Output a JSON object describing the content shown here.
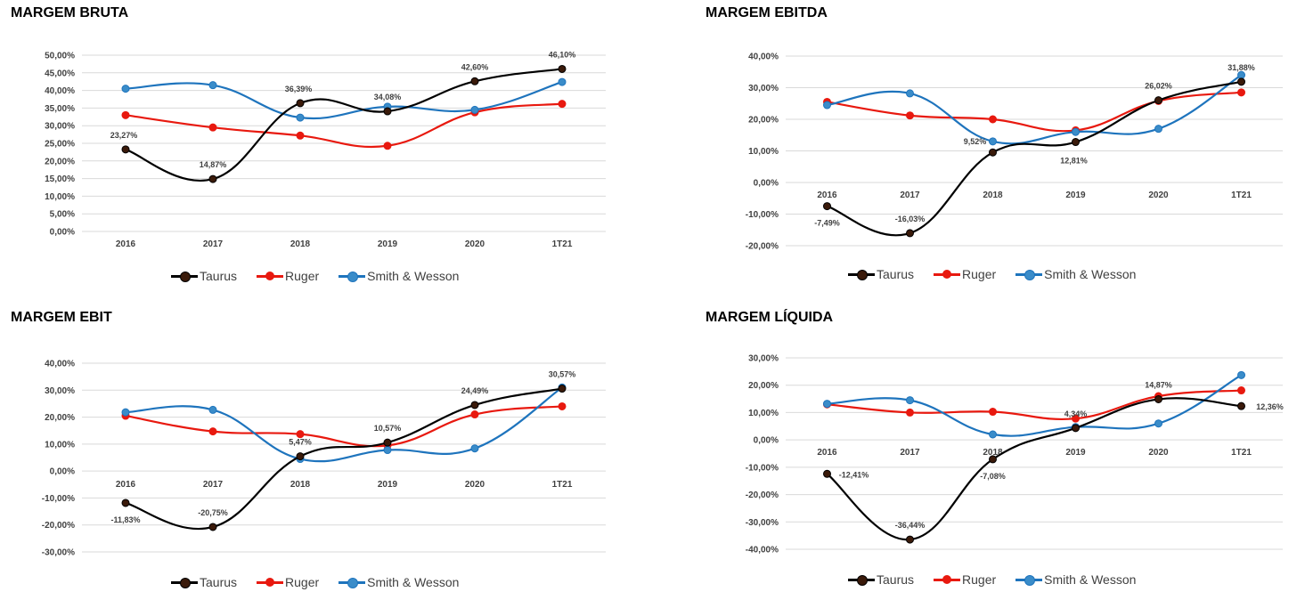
{
  "colors": {
    "Taurus": "#000000",
    "Ruger": "#e8190f",
    "Smith & Wesson": "#1e74bd",
    "marker_taurus": "#3a1a0a",
    "marker_smith": "#3a8cc9",
    "grid": "#d9d9d9"
  },
  "legend": [
    "Taurus",
    "Ruger",
    "Smith & Wesson"
  ],
  "chart_data": [
    {
      "type": "line",
      "title": "MARGEM BRUTA",
      "categories": [
        "2016",
        "2017",
        "2018",
        "2019",
        "2020",
        "1T21"
      ],
      "ylim": [
        0,
        50
      ],
      "yticks": [
        "0,00%",
        "5,00%",
        "10,00%",
        "15,00%",
        "20,00%",
        "25,00%",
        "30,00%",
        "35,00%",
        "40,00%",
        "45,00%",
        "50,00%"
      ],
      "series": [
        {
          "name": "Taurus",
          "values": [
            23.27,
            14.87,
            36.39,
            34.08,
            42.6,
            46.1
          ]
        },
        {
          "name": "Ruger",
          "values": [
            33.0,
            29.5,
            27.2,
            24.3,
            33.8,
            36.2
          ]
        },
        {
          "name": "Smith & Wesson",
          "values": [
            40.5,
            41.5,
            32.3,
            35.4,
            34.5,
            42.4
          ]
        }
      ],
      "data_labels": [
        "23,27%",
        "14,87%",
        "36,39%",
        "34,08%",
        "42,60%",
        "46,10%"
      ]
    },
    {
      "type": "line",
      "title": "MARGEM EBITDA",
      "categories": [
        "2016",
        "2017",
        "2018",
        "2019",
        "2020",
        "1T21"
      ],
      "ylim": [
        -20,
        40
      ],
      "yticks": [
        "-20,00%",
        "-10,00%",
        "0,00%",
        "10,00%",
        "20,00%",
        "30,00%",
        "40,00%"
      ],
      "series": [
        {
          "name": "Taurus",
          "values": [
            -7.49,
            -16.03,
            9.52,
            12.81,
            26.02,
            31.88
          ]
        },
        {
          "name": "Ruger",
          "values": [
            25.5,
            21.2,
            20.0,
            16.5,
            25.8,
            28.5
          ]
        },
        {
          "name": "Smith & Wesson",
          "values": [
            24.5,
            28.2,
            13.0,
            16.0,
            17.0,
            34.0
          ]
        }
      ],
      "data_labels": [
        "-7,49%",
        "-16,03%",
        "9,52%",
        "12,81%",
        "26,02%",
        "31,88%"
      ]
    },
    {
      "type": "line",
      "title": "MARGEM EBIT",
      "categories": [
        "2016",
        "2017",
        "2018",
        "2019",
        "2020",
        "1T21"
      ],
      "ylim": [
        -30,
        40
      ],
      "yticks": [
        "-30,00%",
        "-20,00%",
        "-10,00%",
        "0,00%",
        "10,00%",
        "20,00%",
        "30,00%",
        "40,00%"
      ],
      "series": [
        {
          "name": "Taurus",
          "values": [
            -11.83,
            -20.75,
            5.47,
            10.57,
            24.49,
            30.57
          ]
        },
        {
          "name": "Ruger",
          "values": [
            20.5,
            14.7,
            13.7,
            9.5,
            21.0,
            24.0
          ]
        },
        {
          "name": "Smith & Wesson",
          "values": [
            21.8,
            22.7,
            4.5,
            7.8,
            8.4,
            31.0
          ]
        }
      ],
      "data_labels": [
        "-11,83%",
        "-20,75%",
        "5,47%",
        "10,57%",
        "24,49%",
        "30,57%"
      ]
    },
    {
      "type": "line",
      "title": "MARGEM LÍQUIDA",
      "categories": [
        "2016",
        "2017",
        "2018",
        "2019",
        "2020",
        "1T21"
      ],
      "ylim": [
        -40,
        30
      ],
      "yticks": [
        "-40,00%",
        "-30,00%",
        "-20,00%",
        "-10,00%",
        "0,00%",
        "10,00%",
        "20,00%",
        "30,00%"
      ],
      "series": [
        {
          "name": "Taurus",
          "values": [
            -12.41,
            -36.44,
            -7.08,
            4.34,
            14.87,
            12.36
          ]
        },
        {
          "name": "Ruger",
          "values": [
            13.0,
            10.0,
            10.3,
            7.8,
            16.0,
            18.1
          ]
        },
        {
          "name": "Smith & Wesson",
          "values": [
            13.2,
            14.5,
            2.0,
            4.7,
            6.0,
            23.7
          ]
        }
      ],
      "data_labels": [
        "-12,41%",
        "-36,44%",
        "-7,08%",
        "4,34%",
        "14,87%",
        "12,36%"
      ]
    }
  ]
}
